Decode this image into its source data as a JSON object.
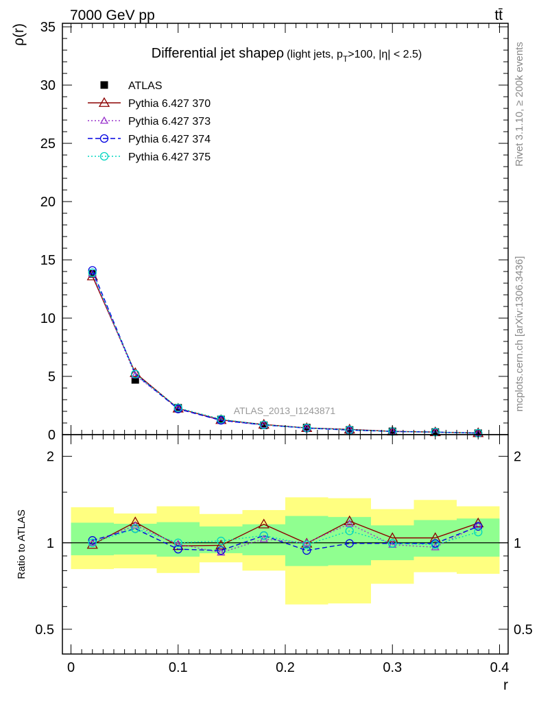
{
  "header": {
    "beam": "7000 GeV pp",
    "process": "tt̄",
    "side_label_top": "Rivet 3.1.10, ≥ 200k events",
    "side_label_bottom": "mcplots.cern.ch [arXiv:1306.3436]",
    "watermark": "ATLAS_2013_I1243871"
  },
  "chart_data": [
    {
      "type": "line",
      "panel": "main",
      "title": "Differential jet shape",
      "title_symbol": "ρ",
      "subtitle_parts": {
        "a": "(light jets, p",
        "sub": "T",
        "b": ">100, |η| < 2.5)"
      },
      "ylabel": "ρ(r)",
      "xlabel": "r",
      "xlim": [
        -0.008,
        0.408
      ],
      "ylim": [
        0,
        35.3
      ],
      "x_ticks": [
        0,
        0.1,
        0.2,
        0.3,
        0.4
      ],
      "x_tick_labels": [
        "0",
        "0.1",
        "0.2",
        "0.3",
        "0.4"
      ],
      "y_ticks": [
        0,
        5,
        10,
        15,
        20,
        25,
        30,
        35
      ],
      "y_tick_labels": [
        "0",
        "5",
        "10",
        "15",
        "20",
        "25",
        "30",
        "35"
      ],
      "x": [
        0.02,
        0.06,
        0.1,
        0.14,
        0.18,
        0.22,
        0.26,
        0.3,
        0.34,
        0.38
      ],
      "series": [
        {
          "name": "ATLAS",
          "color": "#000000",
          "marker": "square",
          "line": "none",
          "values": [
            13.8,
            4.7,
            2.3,
            1.3,
            0.8,
            0.6,
            0.4,
            0.28,
            0.22,
            0.12
          ]
        },
        {
          "name": "Pythia 6.427 370",
          "color": "#8b0000",
          "marker": "triangle",
          "line": "solid",
          "values": [
            13.6,
            5.3,
            2.25,
            1.27,
            0.87,
            0.58,
            0.45,
            0.28,
            0.22,
            0.14
          ]
        },
        {
          "name": "Pythia 6.427 373",
          "color": "#9932cc",
          "marker": "triangle-small",
          "line": "dotted",
          "values": [
            13.8,
            5.1,
            2.25,
            1.21,
            0.82,
            0.58,
            0.44,
            0.28,
            0.21,
            0.13
          ]
        },
        {
          "name": "Pythia 6.427 374",
          "color": "#0000e0",
          "marker": "circle",
          "line": "dashed",
          "values": [
            14.1,
            5.2,
            2.2,
            1.23,
            0.83,
            0.56,
            0.39,
            0.27,
            0.22,
            0.13
          ]
        },
        {
          "name": "Pythia 6.427 375",
          "color": "#00d5c0",
          "marker": "circle",
          "line": "dotted",
          "values": [
            13.9,
            5.2,
            2.3,
            1.33,
            0.84,
            0.58,
            0.42,
            0.27,
            0.22,
            0.13
          ]
        }
      ]
    },
    {
      "type": "line",
      "panel": "ratio",
      "ylabel": "Ratio to ATLAS",
      "xlabel": "r",
      "yscale": "log",
      "xlim": [
        -0.008,
        0.408
      ],
      "ylim": [
        0.41,
        2.38
      ],
      "reference": 1,
      "y_ticks": [
        0.5,
        1,
        2
      ],
      "y_tick_labels": [
        "0.5",
        "1",
        "2"
      ],
      "x_ticks": [
        0,
        0.1,
        0.2,
        0.3,
        0.4
      ],
      "x_tick_labels": [
        "0",
        "0.1",
        "0.2",
        "0.3",
        "0.4"
      ],
      "bin_edges": [
        0.0,
        0.04,
        0.08,
        0.12,
        0.16,
        0.2,
        0.24,
        0.28,
        0.32,
        0.36,
        0.4
      ],
      "band_inner_lo": [
        0.905,
        0.91,
        0.895,
        0.92,
        0.905,
        0.83,
        0.835,
        0.87,
        0.895,
        0.895
      ],
      "band_inner_hi": [
        1.175,
        1.165,
        1.18,
        1.14,
        1.16,
        1.24,
        1.23,
        1.15,
        1.2,
        1.215
      ],
      "band_outer_lo": [
        0.81,
        0.815,
        0.785,
        0.855,
        0.8,
        0.61,
        0.615,
        0.72,
        0.79,
        0.78
      ],
      "band_outer_hi": [
        1.33,
        1.265,
        1.34,
        1.26,
        1.3,
        1.44,
        1.43,
        1.31,
        1.41,
        1.34
      ],
      "x": [
        0.02,
        0.06,
        0.1,
        0.14,
        0.18,
        0.22,
        0.26,
        0.3,
        0.34,
        0.38
      ],
      "series": [
        {
          "name": "Pythia 6.427 370",
          "color": "#8b0000",
          "marker": "triangle",
          "line": "solid",
          "values": [
            0.985,
            1.18,
            0.975,
            0.98,
            1.16,
            0.995,
            1.19,
            1.04,
            1.04,
            1.17
          ]
        },
        {
          "name": "Pythia 6.427 373",
          "color": "#9932cc",
          "marker": "triangle-small",
          "line": "dotted",
          "values": [
            1.0,
            1.15,
            0.99,
            0.925,
            1.03,
            1.0,
            1.165,
            0.985,
            0.965,
            1.15
          ]
        },
        {
          "name": "Pythia 6.427 374",
          "color": "#0000e0",
          "marker": "circle",
          "line": "dashed",
          "values": [
            1.02,
            1.12,
            0.95,
            0.94,
            1.06,
            0.94,
            0.995,
            0.995,
            0.995,
            1.14
          ]
        },
        {
          "name": "Pythia 6.427 375",
          "color": "#00d5c0",
          "marker": "circle",
          "line": "dotted",
          "values": [
            1.0,
            1.12,
            1.0,
            1.015,
            1.06,
            0.985,
            1.1,
            0.995,
            0.985,
            1.09
          ]
        }
      ]
    }
  ]
}
